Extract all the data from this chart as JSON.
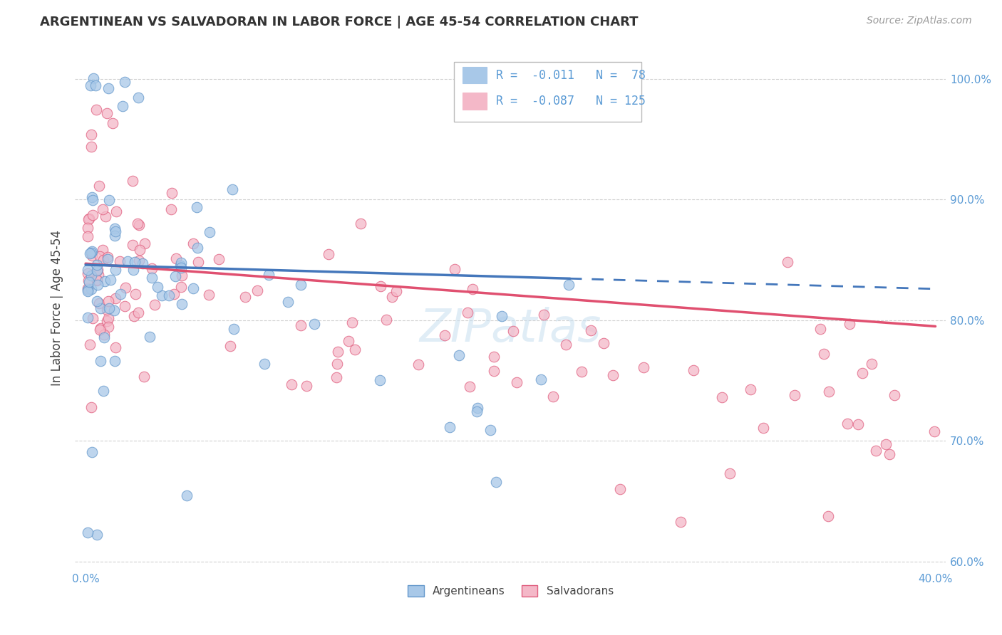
{
  "title": "ARGENTINEAN VS SALVADORAN IN LABOR FORCE | AGE 45-54 CORRELATION CHART",
  "source": "Source: ZipAtlas.com",
  "ylabel": "In Labor Force | Age 45-54",
  "xlim": [
    -0.005,
    0.405
  ],
  "ylim": [
    0.595,
    1.025
  ],
  "x_ticks": [
    0.0,
    0.05,
    0.1,
    0.15,
    0.2,
    0.25,
    0.3,
    0.35,
    0.4
  ],
  "x_tick_labels": [
    "0.0%",
    "",
    "",
    "",
    "",
    "",
    "",
    "",
    "40.0%"
  ],
  "y_ticks": [
    0.6,
    0.7,
    0.8,
    0.9,
    1.0
  ],
  "y_tick_labels": [
    "60.0%",
    "70.0%",
    "80.0%",
    "90.0%",
    "100.0%"
  ],
  "argentinean_color": "#a8c8e8",
  "argentinean_edge_color": "#6699cc",
  "salvadoran_color": "#f4b8c8",
  "salvadoran_edge_color": "#e06080",
  "trend_arg_color": "#4477bb",
  "trend_sal_color": "#e05070",
  "argentinean_R": -0.011,
  "argentinean_N": 78,
  "salvadoran_R": -0.087,
  "salvadoran_N": 125,
  "legend_label_1": "Argentineans",
  "legend_label_2": "Salvadorans",
  "watermark": "ZIPatlas",
  "grid_color": "#cccccc",
  "tick_color": "#5b9bd5"
}
